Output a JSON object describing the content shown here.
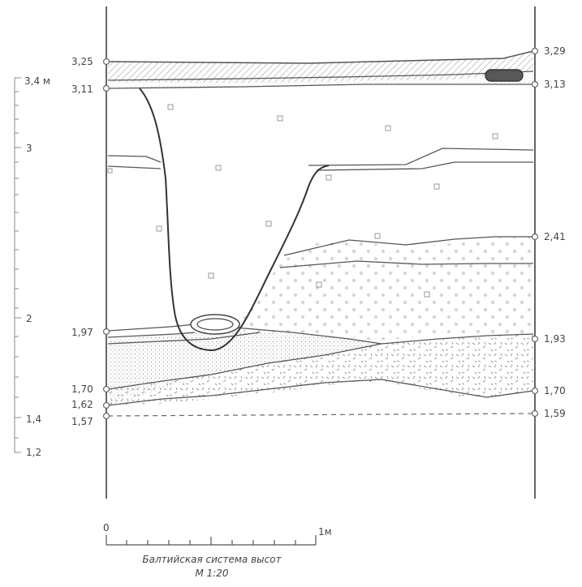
{
  "scale_bar": {
    "height_units": [
      {
        "text": "3,4 м",
        "value": 3.4
      },
      {
        "text": "3",
        "value": 3.0
      },
      {
        "text": "2",
        "value": 2.0
      },
      {
        "text": "1,4",
        "value": 1.4
      },
      {
        "text": "1,2",
        "value": 1.2
      }
    ]
  },
  "left_marks": [
    {
      "text": "3,25",
      "value": 3.25
    },
    {
      "text": "3,11",
      "value": 3.11
    },
    {
      "text": "1,97",
      "value": 1.97
    },
    {
      "text": "1,70",
      "value": 1.7
    },
    {
      "text": "1,62",
      "value": 1.62
    },
    {
      "text": "1,57",
      "value": 1.57
    }
  ],
  "right_marks": [
    {
      "text": "3,29",
      "value": 3.29
    },
    {
      "text": "3,13",
      "value": 3.13
    },
    {
      "text": "2,41",
      "value": 2.41
    },
    {
      "text": "1,93",
      "value": 1.93
    },
    {
      "text": "1,70",
      "value": 1.7
    },
    {
      "text": "1,59",
      "value": 1.59
    }
  ],
  "horizontal_scale": {
    "start": "0",
    "end": "1м",
    "caption_1": "Балтийская система высот",
    "caption_2": "М 1:20"
  }
}
